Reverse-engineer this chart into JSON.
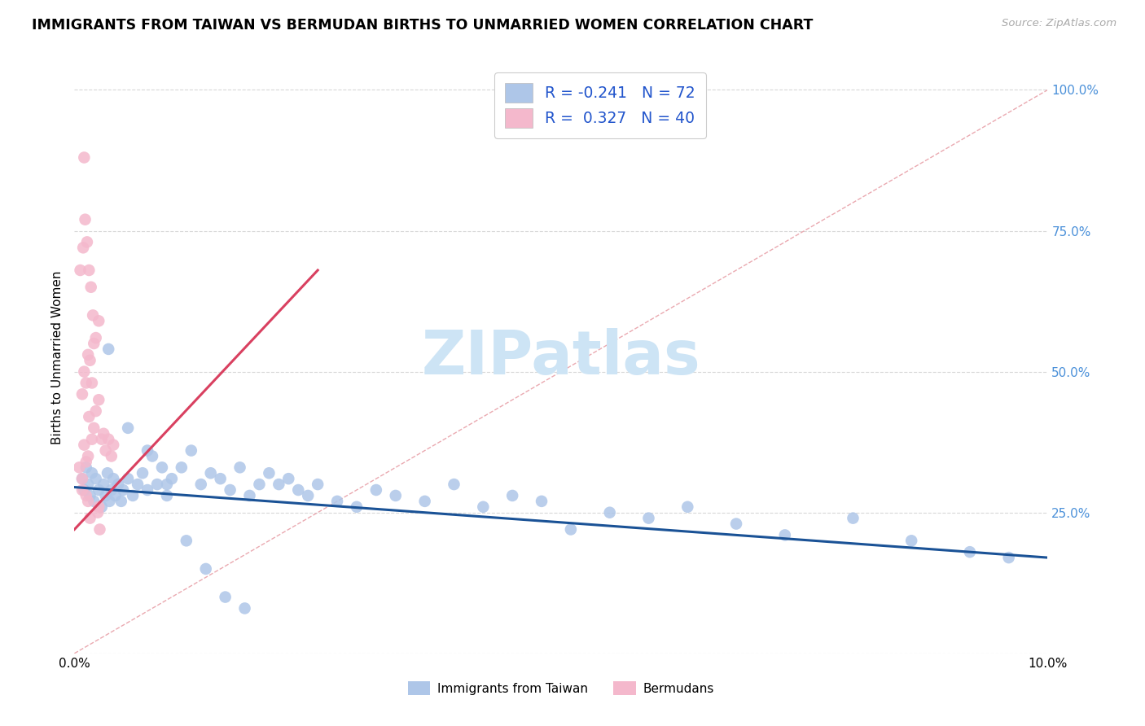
{
  "title": "IMMIGRANTS FROM TAIWAN VS BERMUDAN BIRTHS TO UNMARRIED WOMEN CORRELATION CHART",
  "source": "Source: ZipAtlas.com",
  "ylabel": "Births to Unmarried Women",
  "xmin": 0.0,
  "xmax": 0.1,
  "ymin": 0.0,
  "ymax": 1.05,
  "blue_color": "#aec6e8",
  "pink_color": "#f4b8cc",
  "blue_line_color": "#1a5296",
  "pink_line_color": "#d94060",
  "diag_line_color": "#e8a0a8",
  "watermark_color": "#cde4f5",
  "grid_color": "#d8d8d8",
  "tick_color_right": "#4a90d9",
  "legend_text_color": "#2255cc",
  "taiwan_x": [
    0.0008,
    0.001,
    0.0012,
    0.0014,
    0.0016,
    0.0018,
    0.002,
    0.0022,
    0.0025,
    0.0028,
    0.003,
    0.0032,
    0.0034,
    0.0036,
    0.0038,
    0.004,
    0.0042,
    0.0045,
    0.0048,
    0.005,
    0.0055,
    0.006,
    0.0065,
    0.007,
    0.0075,
    0.008,
    0.0085,
    0.009,
    0.0095,
    0.01,
    0.011,
    0.012,
    0.013,
    0.014,
    0.015,
    0.016,
    0.017,
    0.018,
    0.019,
    0.02,
    0.021,
    0.022,
    0.023,
    0.024,
    0.025,
    0.027,
    0.029,
    0.031,
    0.033,
    0.036,
    0.039,
    0.042,
    0.045,
    0.048,
    0.051,
    0.055,
    0.059,
    0.063,
    0.068,
    0.073,
    0.08,
    0.086,
    0.092,
    0.096,
    0.0035,
    0.0055,
    0.0075,
    0.0095,
    0.0115,
    0.0135,
    0.0155,
    0.0175
  ],
  "taiwan_y": [
    0.31,
    0.29,
    0.33,
    0.3,
    0.28,
    0.32,
    0.27,
    0.31,
    0.29,
    0.26,
    0.3,
    0.28,
    0.32,
    0.27,
    0.29,
    0.31,
    0.28,
    0.3,
    0.27,
    0.29,
    0.31,
    0.28,
    0.3,
    0.32,
    0.29,
    0.35,
    0.3,
    0.33,
    0.28,
    0.31,
    0.33,
    0.36,
    0.3,
    0.32,
    0.31,
    0.29,
    0.33,
    0.28,
    0.3,
    0.32,
    0.3,
    0.31,
    0.29,
    0.28,
    0.3,
    0.27,
    0.26,
    0.29,
    0.28,
    0.27,
    0.3,
    0.26,
    0.28,
    0.27,
    0.22,
    0.25,
    0.24,
    0.26,
    0.23,
    0.21,
    0.24,
    0.2,
    0.18,
    0.17,
    0.54,
    0.4,
    0.36,
    0.3,
    0.2,
    0.15,
    0.1,
    0.08
  ],
  "bermuda_x": [
    0.0005,
    0.0008,
    0.001,
    0.0012,
    0.0014,
    0.0015,
    0.0018,
    0.002,
    0.0022,
    0.0025,
    0.0028,
    0.003,
    0.0032,
    0.0035,
    0.0038,
    0.004,
    0.0008,
    0.001,
    0.0012,
    0.0014,
    0.0016,
    0.0018,
    0.002,
    0.0025,
    0.0006,
    0.0009,
    0.0011,
    0.0013,
    0.0015,
    0.0017,
    0.0019,
    0.0022,
    0.0024,
    0.0026,
    0.0014,
    0.0016,
    0.001,
    0.0012,
    0.0008,
    0.0025
  ],
  "bermuda_y": [
    0.33,
    0.29,
    0.37,
    0.34,
    0.35,
    0.42,
    0.38,
    0.4,
    0.43,
    0.45,
    0.38,
    0.39,
    0.36,
    0.38,
    0.35,
    0.37,
    0.46,
    0.5,
    0.48,
    0.53,
    0.52,
    0.48,
    0.55,
    0.59,
    0.68,
    0.72,
    0.77,
    0.73,
    0.68,
    0.65,
    0.6,
    0.56,
    0.25,
    0.22,
    0.27,
    0.24,
    0.88,
    0.28,
    0.31,
    0.26
  ],
  "watermark": "ZIPatlas"
}
